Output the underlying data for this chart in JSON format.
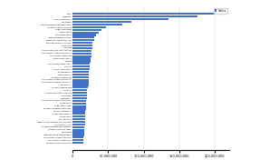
{
  "title": "",
  "legend_label": "Sales",
  "bar_color": "#4472C4",
  "background_color": "#ffffff",
  "categories": [
    "Tetris",
    "Minecraft",
    "Grand Theft Auto V",
    "Wii Sports",
    "Playerunknown's Battlegrounds",
    "Pokemon Red/Blue/Yellow",
    "Super Mario Bros",
    "Mario Kart 8",
    "Wii Sports Resort",
    "Mario Super Mario Bros",
    "New Super Mario Bros. Wii",
    "The Elder Scrolls V: Skyrim",
    "Duck Hunt",
    "Wii Play",
    "Grand Theft Auto: San Andreas",
    "Call of Duty: Modern Warfare 3",
    "Call of Duty: Black Ops",
    "Grand Theft Auto III",
    "Terraria",
    "Call of Duty: Black Ops II",
    "FIFA 20",
    "Kinect Adventures",
    "Borderlands 2",
    "Mario Kart Wii",
    "Pokemon Gold/Silver",
    "Call of Duty: Modern Warfare 2",
    "Call of Duty: Modern Warfare 3",
    "Wii Fit Plus",
    "Global Village Wimm",
    "Diablo III",
    "Grand Theft Auto: Vice City",
    "Lemmings",
    "Warcraft III",
    "Call of Duty: Modern Warfare 2",
    "Rover Kyri-S",
    "Super Mario Land",
    "Pokemon Diamond and Pearl",
    "Skyrim Platform III",
    "Super Mario Bros. 3",
    "Rover Kyri-S",
    "The Last of Us",
    "Mario & Luigi: Bowser's Inside Story",
    "Civilization II ville",
    "Pokemon Omega and Sapphire",
    "Pokemon Sun and Moon",
    "Wii Sports",
    "Need for Speed Most Wanted",
    "Call of Duty: Modern Warfare",
    "Call of Duty: Modern War",
    "Pokemon Black and White"
  ],
  "values": [
    202000000,
    176000000,
    135000000,
    82000000,
    70000000,
    47000000,
    40000000,
    37000000,
    33000000,
    30000000,
    30000000,
    28000000,
    28000000,
    28000000,
    27000000,
    26000000,
    26000000,
    25000000,
    25000000,
    24000000,
    24000000,
    24000000,
    23000000,
    23000000,
    23000000,
    22000000,
    22000000,
    22000000,
    21000000,
    20000000,
    20000000,
    20000000,
    20000000,
    19000000,
    19000000,
    19000000,
    19000000,
    18000000,
    18000000,
    18000000,
    17000000,
    17000000,
    17000000,
    16000000,
    16000000,
    16000000,
    16000000,
    15000000,
    15000000,
    15000000
  ],
  "xlim": [
    0,
    220000000
  ],
  "xtick_values": [
    0,
    50000000,
    100000000,
    150000000,
    200000000
  ],
  "xtick_labels": [
    "0",
    "50,000,000",
    "100,000,000",
    "150,000,000",
    "200,000,000"
  ],
  "label_fontsize": 1.5,
  "xtick_fontsize": 2.5
}
